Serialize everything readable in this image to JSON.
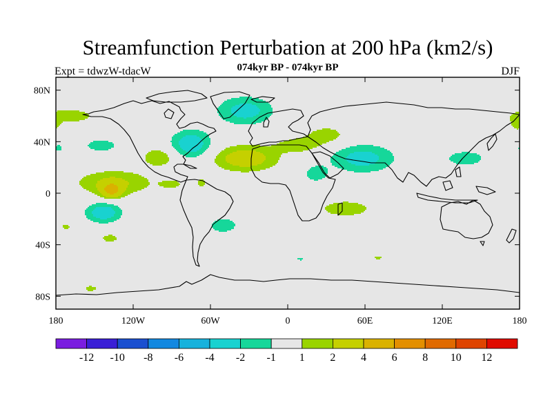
{
  "title": "Streamfunction Perturbation at 200 hPa (km2/s)",
  "left_label": "Expt = tdwzW-tdacW",
  "center_label": "074kyr BP - 074kyr BP",
  "right_label": "DJF",
  "lat_ticks": [
    {
      "lat": 80,
      "label": "80N"
    },
    {
      "lat": 40,
      "label": "40N"
    },
    {
      "lat": 0,
      "label": "0"
    },
    {
      "lat": -40,
      "label": "40S"
    },
    {
      "lat": -80,
      "label": "80S"
    }
  ],
  "lon_ticks": [
    {
      "lon": -180,
      "label": "180"
    },
    {
      "lon": -120,
      "label": "120W"
    },
    {
      "lon": -60,
      "label": "60W"
    },
    {
      "lon": 0,
      "label": "0"
    },
    {
      "lon": 60,
      "label": "60E"
    },
    {
      "lon": 120,
      "label": "120E"
    },
    {
      "lon": 180,
      "label": "180"
    }
  ],
  "colorbar": {
    "colors": [
      "#7a1de0",
      "#3a1fd6",
      "#1a4fd0",
      "#1288e0",
      "#17b2dc",
      "#19d2d0",
      "#16d79a",
      "#e6e6e6",
      "#99d400",
      "#c5d000",
      "#dab200",
      "#e38f00",
      "#e06a00",
      "#df4400",
      "#e00b00"
    ],
    "labels": [
      "-12",
      "-10",
      "-8",
      "-6",
      "-4",
      "-2",
      "-1",
      "1",
      "2",
      "4",
      "6",
      "8",
      "10",
      "12"
    ]
  },
  "chart_data": {
    "type": "heatmap",
    "projection": "cylindrical-equidistant",
    "lon_range": [
      -180,
      180
    ],
    "lat_range": [
      -90,
      90
    ],
    "units": "km2/s",
    "background_level": "between -1 and 1",
    "anomalies": [
      {
        "lon": -170,
        "lat": 60,
        "value": 1.5,
        "slon": 25,
        "slat": 7
      },
      {
        "lon": -145,
        "lat": 37,
        "value": -1.5,
        "slon": 16,
        "slat": 6
      },
      {
        "lon": -178,
        "lat": 35,
        "value": -1.3,
        "slon": 5,
        "slat": 4
      },
      {
        "lon": -100,
        "lat": 28,
        "value": 1.8,
        "slon": 14,
        "slat": 8
      },
      {
        "lon": -135,
        "lat": 8,
        "value": 2.2,
        "slon": 30,
        "slat": 10
      },
      {
        "lon": -137,
        "lat": 2,
        "value": 3.8,
        "slon": 8,
        "slat": 6
      },
      {
        "lon": -75,
        "lat": 38,
        "value": -3.0,
        "slon": 16,
        "slat": 11
      },
      {
        "lon": -90,
        "lat": 7,
        "value": 1.3,
        "slon": 10,
        "slat": 4
      },
      {
        "lon": -67,
        "lat": 8,
        "value": 1.3,
        "slon": 5,
        "slat": 5
      },
      {
        "lon": -33,
        "lat": 64,
        "value": -2.6,
        "slon": 22,
        "slat": 11
      },
      {
        "lon": -33,
        "lat": 27,
        "value": 3.0,
        "slon": 25,
        "slat": 10
      },
      {
        "lon": 8,
        "lat": 37,
        "value": 1.6,
        "slon": 18,
        "slat": 6
      },
      {
        "lon": 30,
        "lat": 45,
        "value": 1.5,
        "slon": 18,
        "slat": 8
      },
      {
        "lon": 22,
        "lat": 15,
        "value": -1.6,
        "slon": 10,
        "slat": 7
      },
      {
        "lon": 45,
        "lat": -12,
        "value": 1.7,
        "slon": 22,
        "slat": 7
      },
      {
        "lon": 58,
        "lat": 27,
        "value": -2.6,
        "slon": 25,
        "slat": 11
      },
      {
        "lon": 138,
        "lat": 27,
        "value": -1.6,
        "slon": 18,
        "slat": 7
      },
      {
        "lon": 178,
        "lat": 53,
        "value": 1.3,
        "slon": 5,
        "slat": 5
      },
      {
        "lon": -143,
        "lat": -15,
        "value": -3.0,
        "slon": 14,
        "slat": 8
      },
      {
        "lon": -172,
        "lat": -26,
        "value": 1.3,
        "slon": 5,
        "slat": 3
      },
      {
        "lon": -138,
        "lat": -35,
        "value": 1.5,
        "slon": 8,
        "slat": 4
      },
      {
        "lon": -153,
        "lat": -74,
        "value": 1.4,
        "slon": 7,
        "slat": 3
      },
      {
        "lon": -50,
        "lat": -25,
        "value": -1.6,
        "slon": 13,
        "slat": 7
      },
      {
        "lon": 10,
        "lat": -51,
        "value": -1.3,
        "slon": 4,
        "slat": 2
      },
      {
        "lon": 70,
        "lat": -50,
        "value": 1.3,
        "slon": 5,
        "slat": 2
      }
    ]
  }
}
